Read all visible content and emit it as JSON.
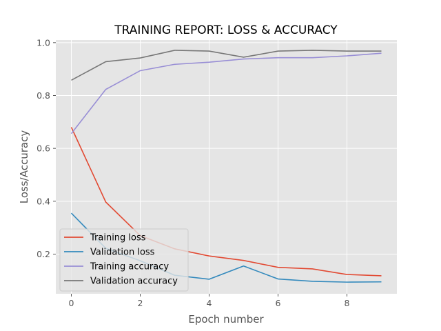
{
  "chart_data": {
    "type": "line",
    "title": "TRAINING REPORT: LOSS & ACCURACY",
    "xlabel": "Epoch number",
    "ylabel": "Loss/Accuracy",
    "xlim": [
      -0.45,
      9.45
    ],
    "ylim": [
      0.05,
      1.01
    ],
    "x": [
      0,
      1,
      2,
      3,
      4,
      5,
      6,
      7,
      8,
      9
    ],
    "xticks": [
      0,
      2,
      4,
      6,
      8
    ],
    "yticks": [
      0.2,
      0.4,
      0.6,
      0.8,
      1.0
    ],
    "xtick_labels": [
      "0",
      "2",
      "4",
      "6",
      "8"
    ],
    "ytick_labels": [
      "0.2",
      "0.4",
      "0.6",
      "0.8",
      "1.0"
    ],
    "grid": true,
    "legend_position": "lower-left",
    "series": [
      {
        "name": "Training loss",
        "color": "#E24A33",
        "values": [
          0.68,
          0.397,
          0.27,
          0.22,
          0.193,
          0.176,
          0.15,
          0.144,
          0.123,
          0.118
        ]
      },
      {
        "name": "Validation loss",
        "color": "#348ABD",
        "values": [
          0.355,
          0.222,
          0.175,
          0.12,
          0.105,
          0.155,
          0.106,
          0.097,
          0.094,
          0.095
        ]
      },
      {
        "name": "Training accuracy",
        "color": "#988ED5",
        "values": [
          0.656,
          0.823,
          0.894,
          0.918,
          0.926,
          0.938,
          0.943,
          0.943,
          0.95,
          0.96
        ]
      },
      {
        "name": "Validation accuracy",
        "color": "#777777",
        "values": [
          0.858,
          0.928,
          0.942,
          0.971,
          0.968,
          0.945,
          0.968,
          0.971,
          0.968,
          0.968
        ]
      }
    ]
  }
}
